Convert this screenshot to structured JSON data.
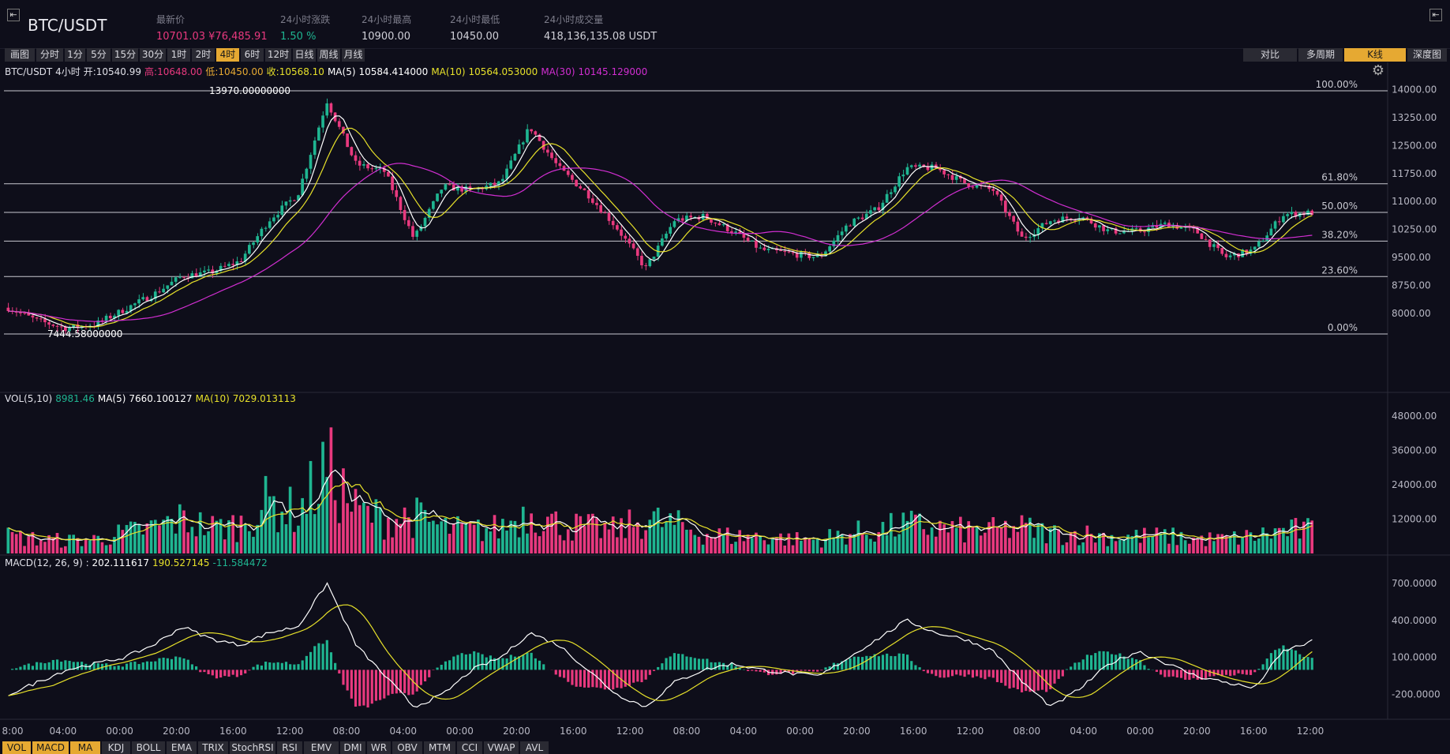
{
  "header": {
    "pair": "BTC/USDT",
    "stats": [
      {
        "label": "最新价",
        "value": "10701.03 ¥76,485.91",
        "color": "#e8397e"
      },
      {
        "label": "24小时涨跌",
        "value": "1.50 %",
        "color": "#1fb591"
      },
      {
        "label": "24小时最高",
        "value": "10900.00",
        "color": "#d0d0d8"
      },
      {
        "label": "24小时最低",
        "value": "10450.00",
        "color": "#d0d0d8"
      },
      {
        "label": "24小时成交量",
        "value": "418,136,135.08 USDT",
        "color": "#d0d0d8"
      }
    ],
    "left_icon": "collapse-left-icon",
    "right_icon": "collapse-right-icon"
  },
  "timeframes": [
    "画图",
    "分时",
    "1分",
    "5分",
    "15分",
    "30分",
    "1时",
    "2时",
    "4时",
    "6时",
    "12时",
    "日线",
    "周线",
    "月线"
  ],
  "active_timeframe": "4时",
  "right_tabs": [
    "对比",
    "多周期",
    "K线",
    "深度图"
  ],
  "active_right_tab": "K线",
  "legend_price": {
    "symbol": "BTC/USDT 4小时",
    "open_label": "开:",
    "open": "10540.99",
    "high_label": "高:",
    "high": "10648.00",
    "low_label": "低:",
    "low": "10450.00",
    "close_label": "收:",
    "close": "10568.10",
    "ma5_label": "MA(5)",
    "ma5": "10584.414000",
    "ma10_label": "MA(10)",
    "ma10": "10564.053000",
    "ma30_label": "MA(30)",
    "ma30": "10145.129000"
  },
  "legend_vol": {
    "label": "VOL(5,10)",
    "vol": "8981.46",
    "ma5_label": "MA(5)",
    "ma5": "7660.100127",
    "ma10_label": "MA(10)",
    "ma10": "7029.013113"
  },
  "legend_macd": {
    "label": "MACD(12, 26, 9) : ",
    "dif": "202.111617",
    "dea": "190.527145",
    "hist": "-11.584472"
  },
  "colors": {
    "up": "#1fb591",
    "down": "#e8397e",
    "ma5": "#ffffff",
    "ma10": "#e6e02a",
    "ma30": "#d12ed1",
    "grid": "#2a2a38",
    "accent": "#e6a932"
  },
  "chart_data": {
    "type": "candlestick",
    "price_axis": {
      "ticks": [
        "14000.00",
        "13250.00",
        "12500.00",
        "11750.00",
        "11000.00",
        "10250.00",
        "9500.00",
        "8750.00",
        "8000.00"
      ],
      "range": [
        7444.58,
        13970
      ]
    },
    "fib_levels": [
      {
        "label": "100.00%",
        "value": 13970
      },
      {
        "label": "61.80%",
        "value": 11476
      },
      {
        "label": "50.00%",
        "value": 10707
      },
      {
        "label": "38.20%",
        "value": 9937
      },
      {
        "label": "23.60%",
        "value": 8985
      },
      {
        "label": "0.00%",
        "value": 7444.58
      }
    ],
    "max_label": "13970.00000000",
    "min_label": "7444.58000000",
    "vol_axis": {
      "ticks": [
        "48000.00",
        "36000.00",
        "24000.00",
        "12000.00"
      ],
      "range": [
        0,
        48000
      ]
    },
    "macd_axis": {
      "ticks": [
        "700.0000",
        "400.0000",
        "100.0000",
        "-200.0000"
      ],
      "range": [
        -400,
        750
      ]
    },
    "time_labels": [
      "8:00",
      "04:00",
      "00:00",
      "20:00",
      "16:00",
      "12:00",
      "08:00",
      "04:00",
      "00:00",
      "20:00",
      "16:00",
      "12:00",
      "08:00",
      "04:00",
      "00:00",
      "20:00",
      "16:00",
      "12:00",
      "08:00",
      "04:00",
      "00:00",
      "20:00",
      "16:00",
      "12:00"
    ],
    "price_path": [
      8150,
      7800,
      7600,
      7700,
      8100,
      8500,
      9000,
      9100,
      9400,
      10500,
      11200,
      13700,
      12000,
      11800,
      10000,
      11400,
      11300,
      11500,
      13000,
      11900,
      11200,
      10300,
      9200,
      10500,
      10600,
      10200,
      9700,
      9600,
      9500,
      10400,
      10800,
      11900,
      11900,
      11500,
      11300,
      10000,
      10500,
      10600,
      10200,
      10200,
      10400,
      10200,
      9500,
      9700,
      10650,
      10700
    ],
    "vol_path": [
      6000,
      5000,
      4500,
      5000,
      7000,
      9000,
      12000,
      9000,
      10000,
      18000,
      14000,
      30000,
      15000,
      12000,
      13000,
      9000,
      8000,
      9000,
      15000,
      10000,
      9000,
      8000,
      12000,
      10000,
      7000,
      6000,
      6000,
      5000,
      5000,
      7000,
      8000,
      10000,
      9000,
      8000,
      8000,
      9000,
      7000,
      7000,
      6000,
      6000,
      6000,
      5000,
      5000,
      6000,
      8000,
      8000
    ],
    "macd_path": [
      -200,
      -100,
      0,
      50,
      100,
      200,
      350,
      250,
      200,
      300,
      350,
      700,
      200,
      -50,
      -300,
      -200,
      0,
      100,
      300,
      200,
      0,
      -200,
      -300,
      -100,
      0,
      50,
      0,
      -30,
      -50,
      100,
      250,
      400,
      300,
      250,
      150,
      -100,
      -300,
      -150,
      50,
      150,
      50,
      -50,
      -100,
      -150,
      150,
      230
    ]
  },
  "indicator_tabs": [
    "VOL",
    "MACD",
    "MA",
    "KDJ",
    "BOLL",
    "EMA",
    "TRIX",
    "StochRSI",
    "RSI",
    "EMV",
    "DMI",
    "WR",
    "OBV",
    "MTM",
    "CCI",
    "VWAP",
    "AVL"
  ],
  "active_indicators": [
    "VOL",
    "MACD",
    "MA"
  ]
}
